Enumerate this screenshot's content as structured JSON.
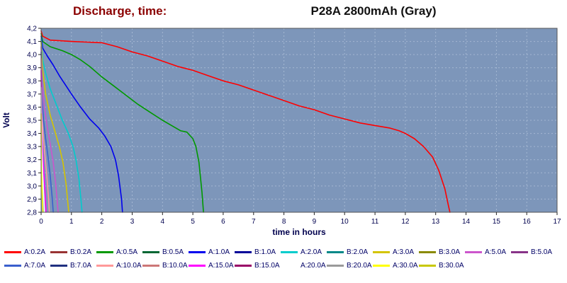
{
  "header": {
    "title_left": "Discharge, time:",
    "title_right": "P28A 2800mAh (Gray)"
  },
  "chart_data": {
    "type": "line",
    "title": "Discharge, time: P28A 2800mAh (Gray)",
    "xlabel": "time in hours",
    "ylabel": "Volt",
    "xlim": [
      0,
      17
    ],
    "ylim": [
      2.8,
      4.2
    ],
    "grid": true,
    "legend_position": "bottom",
    "x_ticks": [
      0,
      1,
      2,
      3,
      4,
      5,
      6,
      7,
      8,
      9,
      10,
      11,
      12,
      13,
      14,
      15,
      16,
      17
    ],
    "y_ticks": [
      {
        "v": 4.2,
        "label": "4,2"
      },
      {
        "v": 4.1,
        "label": "4,1"
      },
      {
        "v": 4.0,
        "label": "4,0"
      },
      {
        "v": 3.9,
        "label": "3,9"
      },
      {
        "v": 3.8,
        "label": "3,8"
      },
      {
        "v": 3.7,
        "label": "3,7"
      },
      {
        "v": 3.6,
        "label": "3,6"
      },
      {
        "v": 3.5,
        "label": "3,5"
      },
      {
        "v": 3.4,
        "label": "3,4"
      },
      {
        "v": 3.3,
        "label": "3,3"
      },
      {
        "v": 3.2,
        "label": "3,2"
      },
      {
        "v": 3.1,
        "label": "3,1"
      },
      {
        "v": 3.0,
        "label": "3,0"
      },
      {
        "v": 2.9,
        "label": "2,9"
      },
      {
        "v": 2.8,
        "label": "2,8"
      }
    ],
    "plot_bg": "#7d96ba",
    "grid_color": "#a4b7d2",
    "frame_color": "#555555",
    "tick_text_color": "#00004e",
    "series": [
      {
        "name": "0.2A",
        "color": "#ff0000",
        "points": [
          [
            0,
            4.18
          ],
          [
            0.05,
            4.14
          ],
          [
            0.3,
            4.11
          ],
          [
            1,
            4.1
          ],
          [
            2,
            4.09
          ],
          [
            2.5,
            4.06
          ],
          [
            3,
            4.02
          ],
          [
            3.5,
            3.99
          ],
          [
            4,
            3.95
          ],
          [
            4.5,
            3.91
          ],
          [
            5,
            3.88
          ],
          [
            5.5,
            3.84
          ],
          [
            6,
            3.8
          ],
          [
            6.5,
            3.77
          ],
          [
            7,
            3.73
          ],
          [
            7.5,
            3.69
          ],
          [
            8,
            3.65
          ],
          [
            8.5,
            3.61
          ],
          [
            9,
            3.58
          ],
          [
            9.5,
            3.54
          ],
          [
            10,
            3.51
          ],
          [
            10.5,
            3.48
          ],
          [
            11,
            3.46
          ],
          [
            11.5,
            3.44
          ],
          [
            11.8,
            3.42
          ],
          [
            12,
            3.4
          ],
          [
            12.3,
            3.36
          ],
          [
            12.6,
            3.3
          ],
          [
            12.9,
            3.22
          ],
          [
            13.1,
            3.12
          ],
          [
            13.3,
            2.98
          ],
          [
            13.42,
            2.85
          ],
          [
            13.47,
            2.8
          ]
        ]
      },
      {
        "name": "0.5A",
        "color": "#009900",
        "points": [
          [
            0,
            4.16
          ],
          [
            0.05,
            4.1
          ],
          [
            0.3,
            4.06
          ],
          [
            0.7,
            4.03
          ],
          [
            1,
            4.0
          ],
          [
            1.3,
            3.96
          ],
          [
            1.6,
            3.91
          ],
          [
            2,
            3.83
          ],
          [
            2.4,
            3.76
          ],
          [
            2.8,
            3.69
          ],
          [
            3.2,
            3.62
          ],
          [
            3.6,
            3.56
          ],
          [
            4,
            3.5
          ],
          [
            4.3,
            3.46
          ],
          [
            4.6,
            3.42
          ],
          [
            4.8,
            3.41
          ],
          [
            5,
            3.36
          ],
          [
            5.1,
            3.3
          ],
          [
            5.2,
            3.18
          ],
          [
            5.3,
            2.95
          ],
          [
            5.35,
            2.8
          ]
        ]
      },
      {
        "name": "1.0A",
        "color": "#0000ee",
        "points": [
          [
            0,
            4.14
          ],
          [
            0.05,
            4.05
          ],
          [
            0.2,
            3.99
          ],
          [
            0.4,
            3.92
          ],
          [
            0.6,
            3.84
          ],
          [
            0.8,
            3.77
          ],
          [
            1,
            3.7
          ],
          [
            1.3,
            3.6
          ],
          [
            1.6,
            3.51
          ],
          [
            1.9,
            3.44
          ],
          [
            2.1,
            3.38
          ],
          [
            2.3,
            3.3
          ],
          [
            2.45,
            3.2
          ],
          [
            2.55,
            3.08
          ],
          [
            2.65,
            2.9
          ],
          [
            2.68,
            2.8
          ]
        ]
      },
      {
        "name": "2.0A",
        "color": "#00cccc",
        "points": [
          [
            0,
            4.12
          ],
          [
            0.05,
            3.96
          ],
          [
            0.15,
            3.86
          ],
          [
            0.3,
            3.74
          ],
          [
            0.5,
            3.62
          ],
          [
            0.7,
            3.5
          ],
          [
            0.9,
            3.4
          ],
          [
            1.05,
            3.3
          ],
          [
            1.15,
            3.2
          ],
          [
            1.25,
            3.05
          ],
          [
            1.32,
            2.88
          ],
          [
            1.35,
            2.8
          ]
        ]
      },
      {
        "name": "3.0A",
        "color": "#d4c400",
        "points": [
          [
            0,
            4.1
          ],
          [
            0.05,
            3.88
          ],
          [
            0.15,
            3.7
          ],
          [
            0.3,
            3.54
          ],
          [
            0.45,
            3.42
          ],
          [
            0.6,
            3.3
          ],
          [
            0.72,
            3.18
          ],
          [
            0.82,
            3.02
          ],
          [
            0.89,
            2.85
          ],
          [
            0.91,
            2.8
          ]
        ]
      },
      {
        "name": "5.0A",
        "color": "#cc55cc",
        "points": [
          [
            0,
            4.06
          ],
          [
            0.03,
            3.8
          ],
          [
            0.1,
            3.62
          ],
          [
            0.2,
            3.45
          ],
          [
            0.3,
            3.32
          ],
          [
            0.4,
            3.18
          ],
          [
            0.48,
            3.02
          ],
          [
            0.54,
            2.86
          ],
          [
            0.56,
            2.8
          ]
        ]
      },
      {
        "name": "7.0A",
        "color": "#3a5fcd",
        "points": [
          [
            0,
            4.02
          ],
          [
            0.03,
            3.66
          ],
          [
            0.08,
            3.5
          ],
          [
            0.15,
            3.36
          ],
          [
            0.23,
            3.22
          ],
          [
            0.3,
            3.08
          ],
          [
            0.37,
            2.9
          ],
          [
            0.4,
            2.8
          ]
        ]
      },
      {
        "name": "10.0A",
        "color": "#ff9999",
        "points": [
          [
            0,
            3.97
          ],
          [
            0.02,
            3.55
          ],
          [
            0.06,
            3.4
          ],
          [
            0.12,
            3.25
          ],
          [
            0.18,
            3.1
          ],
          [
            0.24,
            2.92
          ],
          [
            0.27,
            2.8
          ]
        ]
      },
      {
        "name": "15.0A",
        "color": "#ff00ff",
        "points": [
          [
            0,
            3.88
          ],
          [
            0.02,
            3.4
          ],
          [
            0.05,
            3.25
          ],
          [
            0.09,
            3.1
          ],
          [
            0.13,
            2.95
          ],
          [
            0.16,
            2.8
          ]
        ]
      },
      {
        "name": "20.0A",
        "color": "#ffffff",
        "points": [
          [
            0,
            3.75
          ],
          [
            0.02,
            3.28
          ],
          [
            0.05,
            3.1
          ],
          [
            0.08,
            2.95
          ],
          [
            0.11,
            2.8
          ]
        ]
      },
      {
        "name": "30.0A",
        "color": "#ffff00",
        "points": [
          [
            0,
            3.55
          ],
          [
            0.01,
            3.15
          ],
          [
            0.03,
            2.98
          ],
          [
            0.05,
            2.85
          ],
          [
            0.06,
            2.8
          ]
        ]
      }
    ]
  },
  "legend": {
    "rows": [
      [
        {
          "label": "A:0.2A",
          "color": "#ff0000"
        },
        {
          "label": "B:0.2A",
          "color": "#993333"
        },
        {
          "label": "A:0.5A",
          "color": "#009900"
        },
        {
          "label": "B:0.5A",
          "color": "#006633"
        },
        {
          "label": "A:1.0A",
          "color": "#0000ee"
        },
        {
          "label": "B:1.0A",
          "color": "#000099"
        },
        {
          "label": "A:2.0A",
          "color": "#00cccc"
        },
        {
          "label": "B:2.0A",
          "color": "#008888"
        },
        {
          "label": "A:3.0A",
          "color": "#d4c400"
        },
        {
          "label": "B:3.0A",
          "color": "#8a8a00"
        },
        {
          "label": "A:5.0A",
          "color": "#cc55cc"
        },
        {
          "label": "B:5.0A",
          "color": "#883388"
        }
      ],
      [
        {
          "label": "A:7.0A",
          "color": "#3a5fcd"
        },
        {
          "label": "B:7.0A",
          "color": "#203080"
        },
        {
          "label": "A:10.0A",
          "color": "#ff9999"
        },
        {
          "label": "B:10.0A",
          "color": "#cc7777"
        },
        {
          "label": "A:15.0A",
          "color": "#ff00ff"
        },
        {
          "label": "B:15.0A",
          "color": "#990066"
        },
        {
          "label": "A:20.0A",
          "color": "#ffffff"
        },
        {
          "label": "B:20.0A",
          "color": "#9a9a9a"
        },
        {
          "label": "A:30.0A",
          "color": "#ffff00"
        },
        {
          "label": "B:30.0A",
          "color": "#c8c800"
        }
      ]
    ]
  }
}
